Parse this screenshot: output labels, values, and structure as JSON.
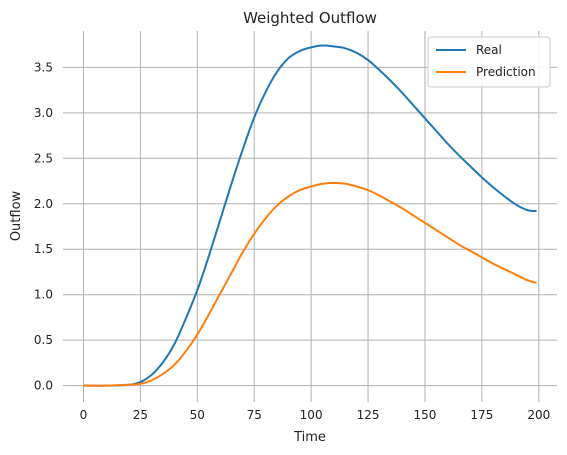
{
  "chart_data": {
    "type": "line",
    "title": "Weighted Outflow",
    "xlabel": "Time",
    "ylabel": "Outflow",
    "xlim": [
      -9,
      208
    ],
    "ylim": [
      -0.18,
      3.9
    ],
    "xticks": [
      0,
      25,
      50,
      75,
      100,
      125,
      150,
      175,
      200
    ],
    "yticks": [
      0.0,
      0.5,
      1.0,
      1.5,
      2.0,
      2.5,
      3.0,
      3.5
    ],
    "xtick_labels": [
      "0",
      "25",
      "50",
      "75",
      "100",
      "125",
      "150",
      "175",
      "200"
    ],
    "ytick_labels": [
      "0.0",
      "0.5",
      "1.0",
      "1.5",
      "2.0",
      "2.5",
      "3.0",
      "3.5"
    ],
    "grid": true,
    "legend_position": "top-right",
    "x": [
      0,
      10,
      20,
      25,
      30,
      35,
      40,
      45,
      50,
      55,
      60,
      65,
      70,
      75,
      80,
      85,
      90,
      95,
      100,
      105,
      110,
      115,
      120,
      125,
      130,
      135,
      140,
      145,
      150,
      155,
      160,
      165,
      170,
      175,
      180,
      185,
      190,
      195,
      199
    ],
    "series": [
      {
        "name": "Real",
        "color": "#1f77b4",
        "values": [
          0.0,
          0.0,
          0.01,
          0.04,
          0.12,
          0.26,
          0.46,
          0.74,
          1.05,
          1.42,
          1.82,
          2.22,
          2.6,
          2.95,
          3.23,
          3.45,
          3.6,
          3.68,
          3.72,
          3.74,
          3.73,
          3.71,
          3.66,
          3.58,
          3.47,
          3.35,
          3.22,
          3.08,
          2.94,
          2.8,
          2.66,
          2.53,
          2.41,
          2.29,
          2.18,
          2.08,
          1.99,
          1.93,
          1.92
        ]
      },
      {
        "name": "Prediction",
        "color": "#ff7f0e",
        "values": [
          0.0,
          0.0,
          0.01,
          0.02,
          0.06,
          0.13,
          0.23,
          0.38,
          0.56,
          0.78,
          1.01,
          1.24,
          1.47,
          1.67,
          1.84,
          1.98,
          2.08,
          2.15,
          2.19,
          2.22,
          2.23,
          2.22,
          2.19,
          2.15,
          2.09,
          2.02,
          1.95,
          1.87,
          1.79,
          1.71,
          1.63,
          1.55,
          1.48,
          1.41,
          1.34,
          1.28,
          1.22,
          1.16,
          1.13
        ]
      }
    ]
  }
}
